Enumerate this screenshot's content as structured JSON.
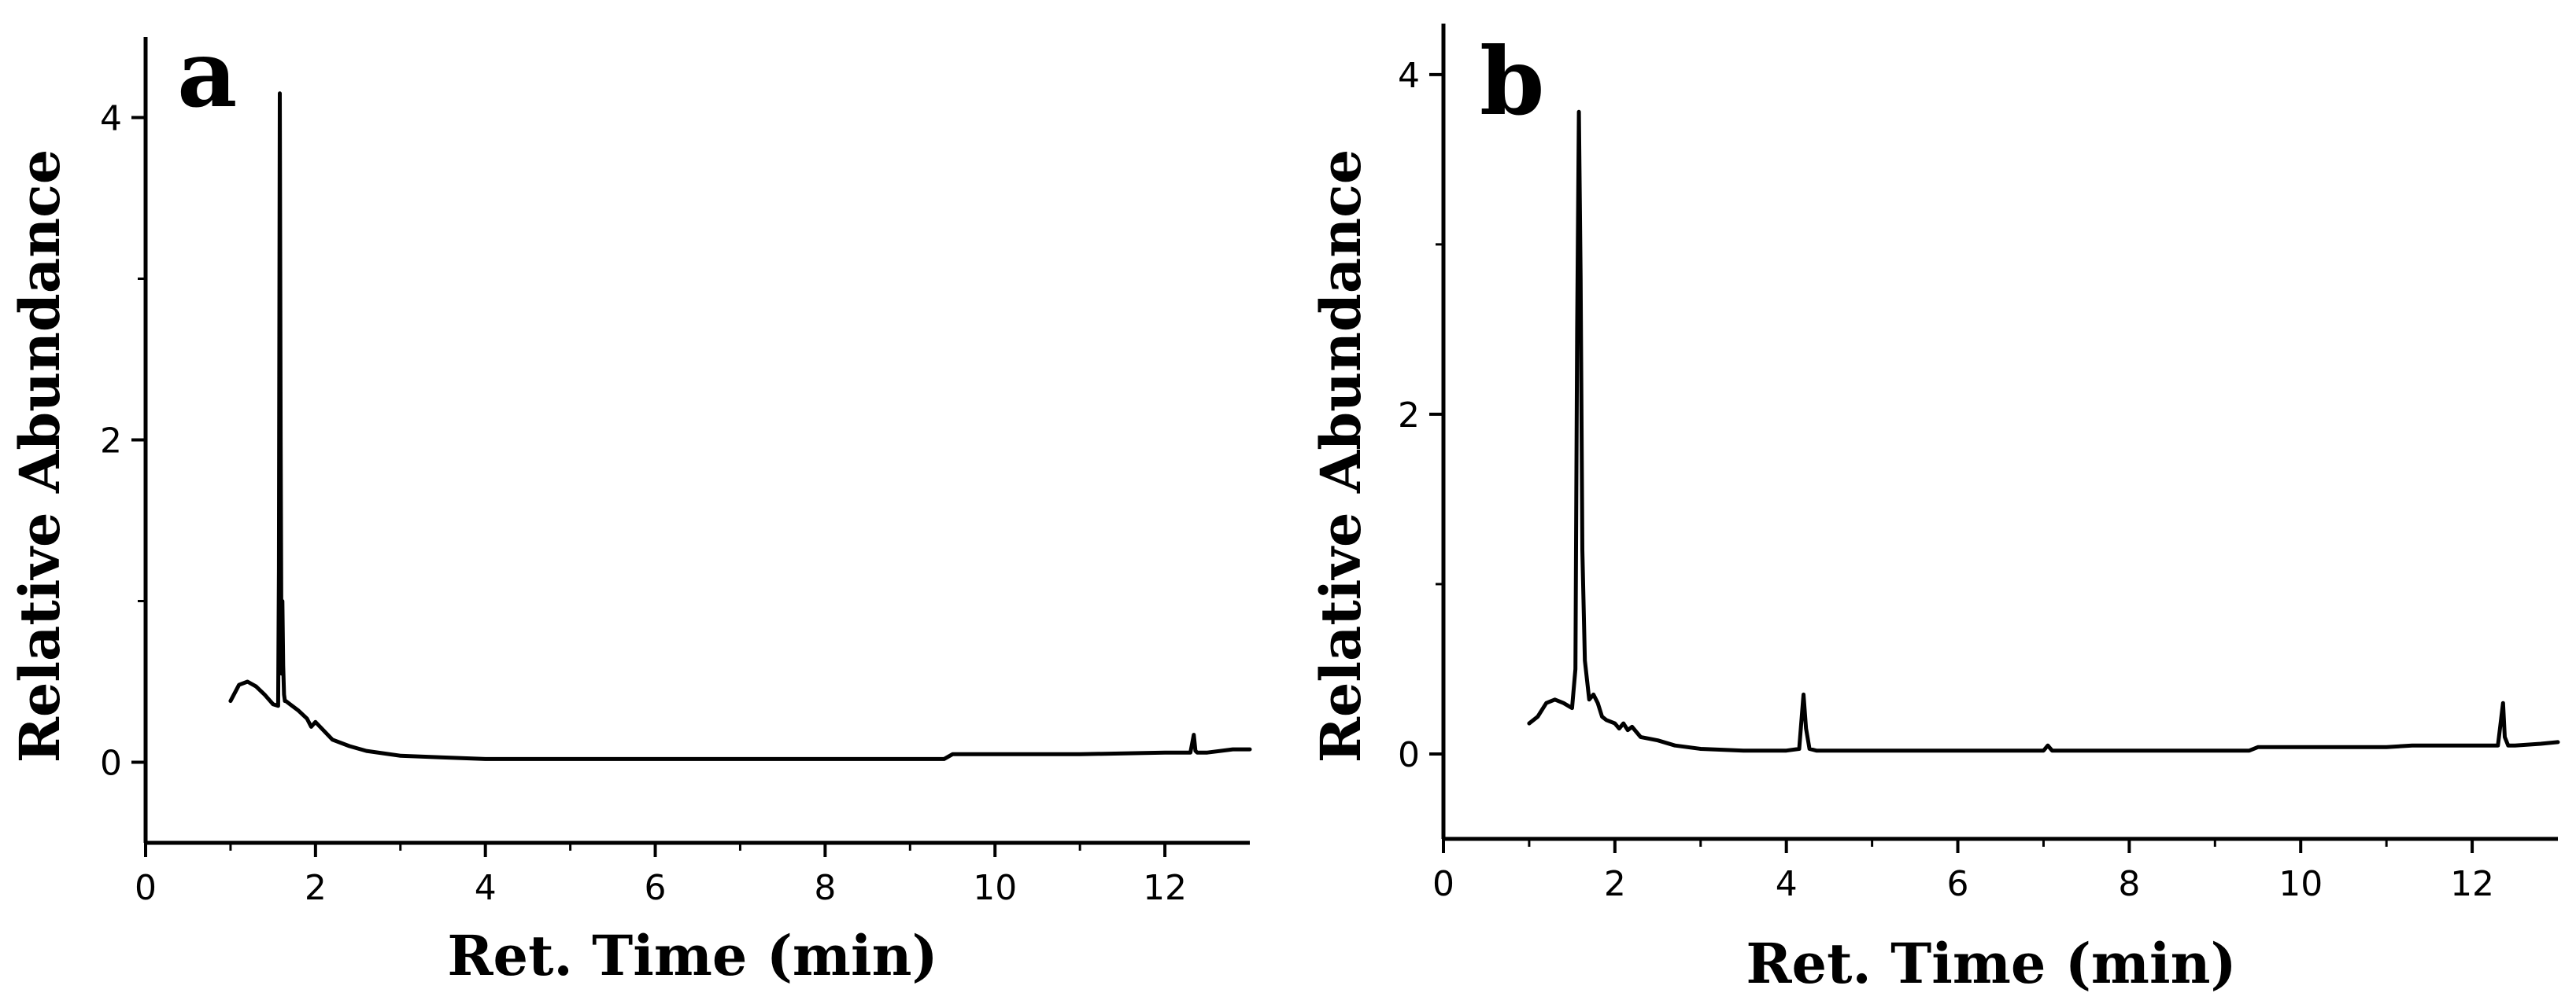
{
  "chart_data": [
    {
      "type": "line",
      "panel_label": "a",
      "xlabel": "Ret. Time (min)",
      "ylabel": "Relative Abundance",
      "xlim": [
        0,
        13
      ],
      "ylim": [
        -0.5,
        4.5
      ],
      "xticks": [
        0,
        2,
        4,
        6,
        8,
        10,
        12
      ],
      "yticks": [
        0,
        2,
        4
      ],
      "color": "#000000",
      "series": [
        {
          "x": [
            1.0,
            1.1,
            1.2,
            1.3,
            1.4,
            1.5,
            1.56,
            1.57,
            1.58,
            1.59,
            1.6,
            1.61,
            1.62,
            1.63,
            1.64,
            1.65,
            1.7,
            1.8,
            1.9,
            1.95,
            2.0,
            2.2,
            2.4,
            2.6,
            3.0,
            3.5,
            4.0,
            5.0,
            6.0,
            7.0,
            8.0,
            9.0,
            9.4,
            9.5,
            10.0,
            11.0,
            12.0,
            12.3,
            12.34,
            12.36,
            12.38,
            12.42,
            12.5,
            12.8,
            13.0
          ],
          "y": [
            0.38,
            0.48,
            0.5,
            0.47,
            0.42,
            0.36,
            0.35,
            1.2,
            4.15,
            2.0,
            0.55,
            1.0,
            0.6,
            0.42,
            0.38,
            0.38,
            0.36,
            0.32,
            0.27,
            0.22,
            0.25,
            0.14,
            0.1,
            0.07,
            0.04,
            0.03,
            0.02,
            0.02,
            0.02,
            0.02,
            0.02,
            0.02,
            0.02,
            0.05,
            0.05,
            0.05,
            0.06,
            0.06,
            0.17,
            0.07,
            0.06,
            0.06,
            0.06,
            0.08,
            0.08
          ]
        }
      ]
    },
    {
      "type": "line",
      "panel_label": "b",
      "xlabel": "Ret. Time (min)",
      "ylabel": "Relative Abundance",
      "xlim": [
        0,
        13
      ],
      "ylim": [
        -0.5,
        4.3
      ],
      "xticks": [
        0,
        2,
        4,
        6,
        8,
        10,
        12
      ],
      "yticks": [
        0,
        2,
        4
      ],
      "color": "#000000",
      "series": [
        {
          "x": [
            1.0,
            1.1,
            1.2,
            1.3,
            1.4,
            1.5,
            1.54,
            1.56,
            1.58,
            1.6,
            1.62,
            1.65,
            1.7,
            1.75,
            1.8,
            1.85,
            1.9,
            2.0,
            2.05,
            2.1,
            2.15,
            2.2,
            2.3,
            2.5,
            2.7,
            3.0,
            3.5,
            4.0,
            4.15,
            4.2,
            4.23,
            4.27,
            4.35,
            5.0,
            6.0,
            7.0,
            7.05,
            7.1,
            8.0,
            9.0,
            9.4,
            9.5,
            10.0,
            11.0,
            11.3,
            12.0,
            12.3,
            12.36,
            12.38,
            12.42,
            12.5,
            12.8,
            13.0
          ],
          "y": [
            0.18,
            0.22,
            0.3,
            0.32,
            0.3,
            0.27,
            0.5,
            2.5,
            3.78,
            2.8,
            1.2,
            0.55,
            0.32,
            0.35,
            0.3,
            0.22,
            0.2,
            0.18,
            0.15,
            0.18,
            0.14,
            0.16,
            0.1,
            0.08,
            0.05,
            0.03,
            0.02,
            0.02,
            0.03,
            0.35,
            0.15,
            0.03,
            0.02,
            0.02,
            0.02,
            0.02,
            0.05,
            0.02,
            0.02,
            0.02,
            0.02,
            0.04,
            0.04,
            0.04,
            0.05,
            0.05,
            0.05,
            0.3,
            0.1,
            0.05,
            0.05,
            0.06,
            0.07
          ]
        }
      ]
    }
  ]
}
